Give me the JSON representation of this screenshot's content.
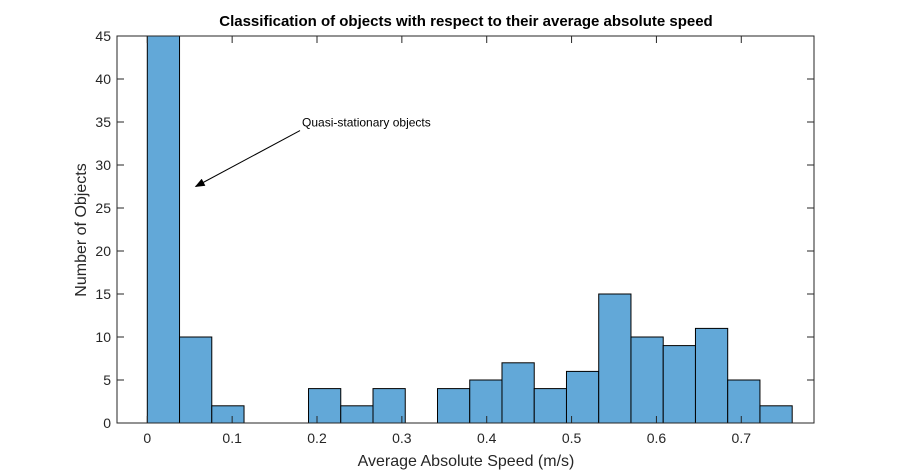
{
  "chart_data": {
    "type": "bar",
    "title": "Classification of objects with respect to their average absolute speed",
    "xlabel": "Average Absolute Speed (m/s)",
    "ylabel": "Number of Objects",
    "xlim": [
      -0.0357,
      0.7857
    ],
    "ylim": [
      0,
      45
    ],
    "xticks": [
      0,
      0.1,
      0.2,
      0.3,
      0.4,
      0.5,
      0.6,
      0.7
    ],
    "xtick_labels": [
      "0",
      "0.1",
      "0.2",
      "0.3",
      "0.4",
      "0.5",
      "0.6",
      "0.7"
    ],
    "yticks": [
      0,
      5,
      10,
      15,
      20,
      25,
      30,
      35,
      40,
      45
    ],
    "ytick_labels": [
      "0",
      "5",
      "10",
      "15",
      "20",
      "25",
      "30",
      "35",
      "40",
      "45"
    ],
    "bin_width": 0.038,
    "bin_start": 0,
    "values": [
      45,
      10,
      2,
      0,
      0,
      4,
      2,
      4,
      0,
      4,
      5,
      7,
      4,
      6,
      15,
      10,
      9,
      11,
      5,
      2
    ],
    "grid": false,
    "bar_color": "#62a8d8",
    "edge_color": "#000000",
    "annotations": [
      {
        "text": "Quasi-stationary objects",
        "x_from": 0.18,
        "y_from": 34,
        "x_to": 0.057,
        "y_to": 27.5
      }
    ]
  }
}
